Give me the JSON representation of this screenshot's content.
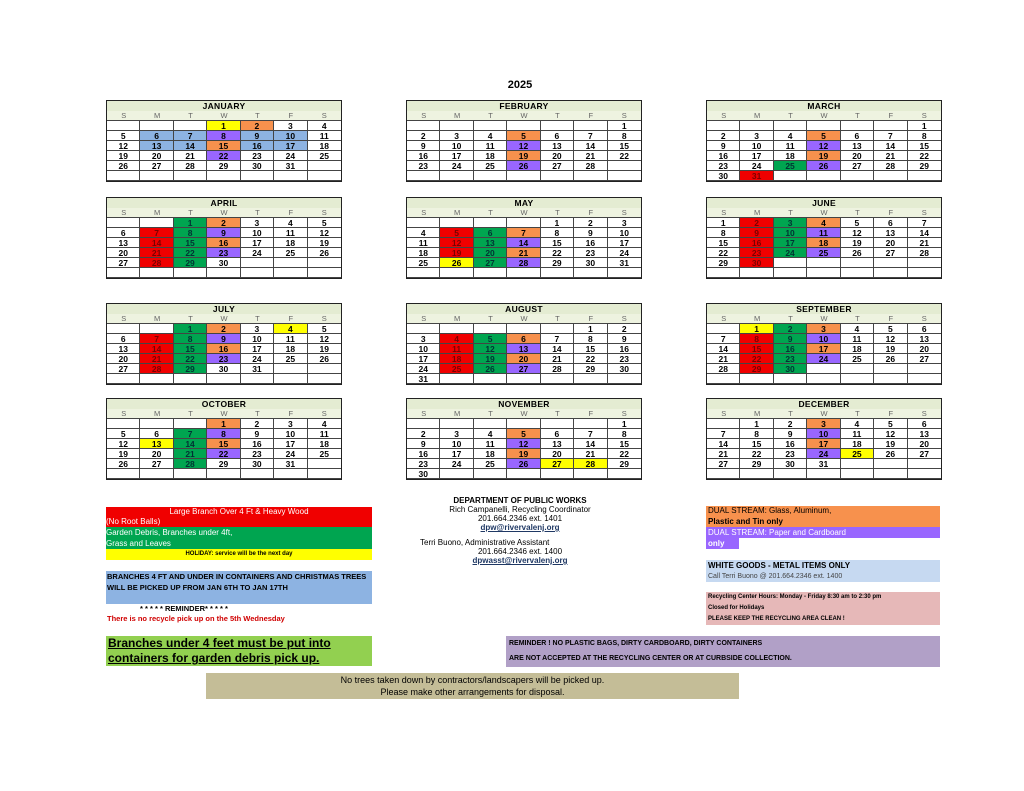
{
  "title": "2025",
  "dow": [
    "S",
    "M",
    "T",
    "W",
    "T",
    "F",
    "S"
  ],
  "months": [
    {
      "name": "JANUARY",
      "start": 3,
      "days": 31,
      "rows": 6,
      "colors": {
        "1": "yellow",
        "2": "orange",
        "6": "blue",
        "7": "blue",
        "8": "purple",
        "9": "blue",
        "10": "blue",
        "13": "blue",
        "14": "blue",
        "15": "orange",
        "16": "blue",
        "17": "blue",
        "22": "purple"
      }
    },
    {
      "name": "FEBRUARY",
      "start": 6,
      "days": 28,
      "rows": 6,
      "colors": {
        "5": "orange",
        "12": "purple",
        "19": "orange",
        "26": "purple"
      }
    },
    {
      "name": "MARCH",
      "start": 6,
      "days": 31,
      "rows": 6,
      "colors": {
        "5": "orange",
        "12": "purple",
        "19": "orange",
        "25": "green",
        "26": "purple",
        "31": "red"
      }
    },
    {
      "name": "APRIL",
      "start": 2,
      "days": 30,
      "rows": 6,
      "colors": {
        "1": "green",
        "2": "orange",
        "7": "red",
        "8": "green",
        "9": "purple",
        "14": "red",
        "15": "green",
        "16": "orange",
        "21": "red",
        "22": "green",
        "23": "purple",
        "28": "red",
        "29": "green"
      }
    },
    {
      "name": "MAY",
      "start": 4,
      "days": 31,
      "rows": 6,
      "colors": {
        "5": "red",
        "6": "green",
        "7": "orange",
        "12": "red",
        "13": "green",
        "14": "purple",
        "19": "red",
        "20": "green",
        "21": "orange",
        "26": "yellow",
        "27": "green",
        "28": "purple"
      }
    },
    {
      "name": "JUNE",
      "start": 0,
      "days": 30,
      "rows": 6,
      "colors": {
        "2": "red",
        "3": "green",
        "4": "orange",
        "9": "red",
        "10": "green",
        "11": "purple",
        "16": "red",
        "17": "green",
        "18": "orange",
        "23": "red",
        "24": "green",
        "25": "purple",
        "30": "red"
      }
    },
    {
      "name": "JULY",
      "start": 2,
      "days": 31,
      "rows": 6,
      "colors": {
        "1": "green",
        "2": "orange",
        "4": "yellow",
        "7": "red",
        "8": "green",
        "9": "purple",
        "14": "red",
        "15": "green",
        "16": "orange",
        "21": "red",
        "22": "green",
        "23": "purple",
        "28": "red",
        "29": "green"
      }
    },
    {
      "name": "AUGUST",
      "start": 5,
      "days": 31,
      "rows": 6,
      "colors": {
        "4": "red",
        "5": "green",
        "6": "orange",
        "11": "red",
        "12": "green",
        "13": "purple",
        "18": "red",
        "19": "green",
        "20": "orange",
        "25": "red",
        "26": "green",
        "27": "purple"
      }
    },
    {
      "name": "SEPTEMBER",
      "start": 1,
      "days": 30,
      "rows": 6,
      "colors": {
        "1": "yellow",
        "2": "green",
        "3": "orange",
        "8": "red",
        "9": "green",
        "10": "purple",
        "15": "red",
        "16": "green",
        "17": "orange",
        "22": "red",
        "23": "green",
        "24": "purple",
        "29": "red",
        "30": "green"
      }
    },
    {
      "name": "OCTOBER",
      "start": 3,
      "days": 31,
      "rows": 6,
      "colors": {
        "1": "orange",
        "7": "green",
        "8": "purple",
        "13": "yellow",
        "14": "green",
        "15": "orange",
        "21": "green",
        "22": "purple",
        "28": "green"
      }
    },
    {
      "name": "NOVEMBER",
      "start": 6,
      "days": 30,
      "rows": 6,
      "colors": {
        "5": "orange",
        "12": "purple",
        "19": "orange",
        "26": "purple",
        "27": "yellow",
        "28": "yellow"
      }
    },
    {
      "name": "DECEMBER",
      "start": 1,
      "days": 31,
      "rows": 6,
      "colors": {
        "3": "orange",
        "10": "purple",
        "17": "orange",
        "24": "purple",
        "25": "yellow"
      },
      "override_last_row": [
        "27",
        "29",
        "30",
        "31"
      ]
    }
  ],
  "legend": {
    "red_line1": "Large Branch Over 4 Ft & Heavy Wood",
    "red_line2": "(No Root Balls)",
    "green_line1": "Garden Debris, Branches under 4ft,",
    "green_line2": "Grass and Leaves",
    "yellow": "HOLIDAY: service will be the next day",
    "blue": "BRANCHES 4 FT AND UNDER IN CONTAINERS AND CHRISTMAS TREES WILL BE PICKED UP FROM JAN 6TH TO JAN 17TH",
    "reminder_title": "* * * * * REMINDER* * * * *",
    "reminder_text": "There is no recycle pick up on the 5th Wednesday",
    "orange_line1": "DUAL STREAM: Glass, Aluminum,",
    "orange_line2": "Plastic and Tin only",
    "purple_line1": "DUAL STREAM: Paper and Cardboard",
    "purple_line2": "only",
    "white_goods_title": "WHITE GOODS - METAL ITEMS ONLY",
    "white_goods_sub": "Call Terri Buono @ 201.664.2346 ext. 1400",
    "center_hours": "Recycling Center Hours:  Monday - Friday 8:30 am to 2:30 pm",
    "center_closed": "Closed for Holidays",
    "center_clean": "PLEASE KEEP THE RECYCLING AREA CLEAN  !"
  },
  "contact": {
    "dept": "DEPARTMENT OF PUBLIC WORKS",
    "person1": "Rich Campanelli, Recycling Coordinator",
    "phone1": "201.664.2346  ext. 1401",
    "email1": "dpw@rivervalenj.org",
    "person2": "Terri Buono, Administrative Assistant",
    "phone2": "201.664.2346 ext. 1400",
    "email2": "dpwasst@rivervalenj.org"
  },
  "notices": {
    "branches_line1": "Branches under 4 feet must be put into",
    "branches_line2": "containers for garden debris pick up.",
    "plastic_line1": "REMINDER !  NO PLASTIC BAGS, DIRTY CARDBOARD, DIRTY CONTAINERS",
    "plastic_line2": "ARE NOT ACCEPTED AT THE RECYCLING CENTER OR AT CURBSIDE COLLECTION.",
    "trees_line1": "No trees taken down by contractors/landscapers will be picked up.",
    "trees_line2": "Please make other arrangements for disposal."
  }
}
